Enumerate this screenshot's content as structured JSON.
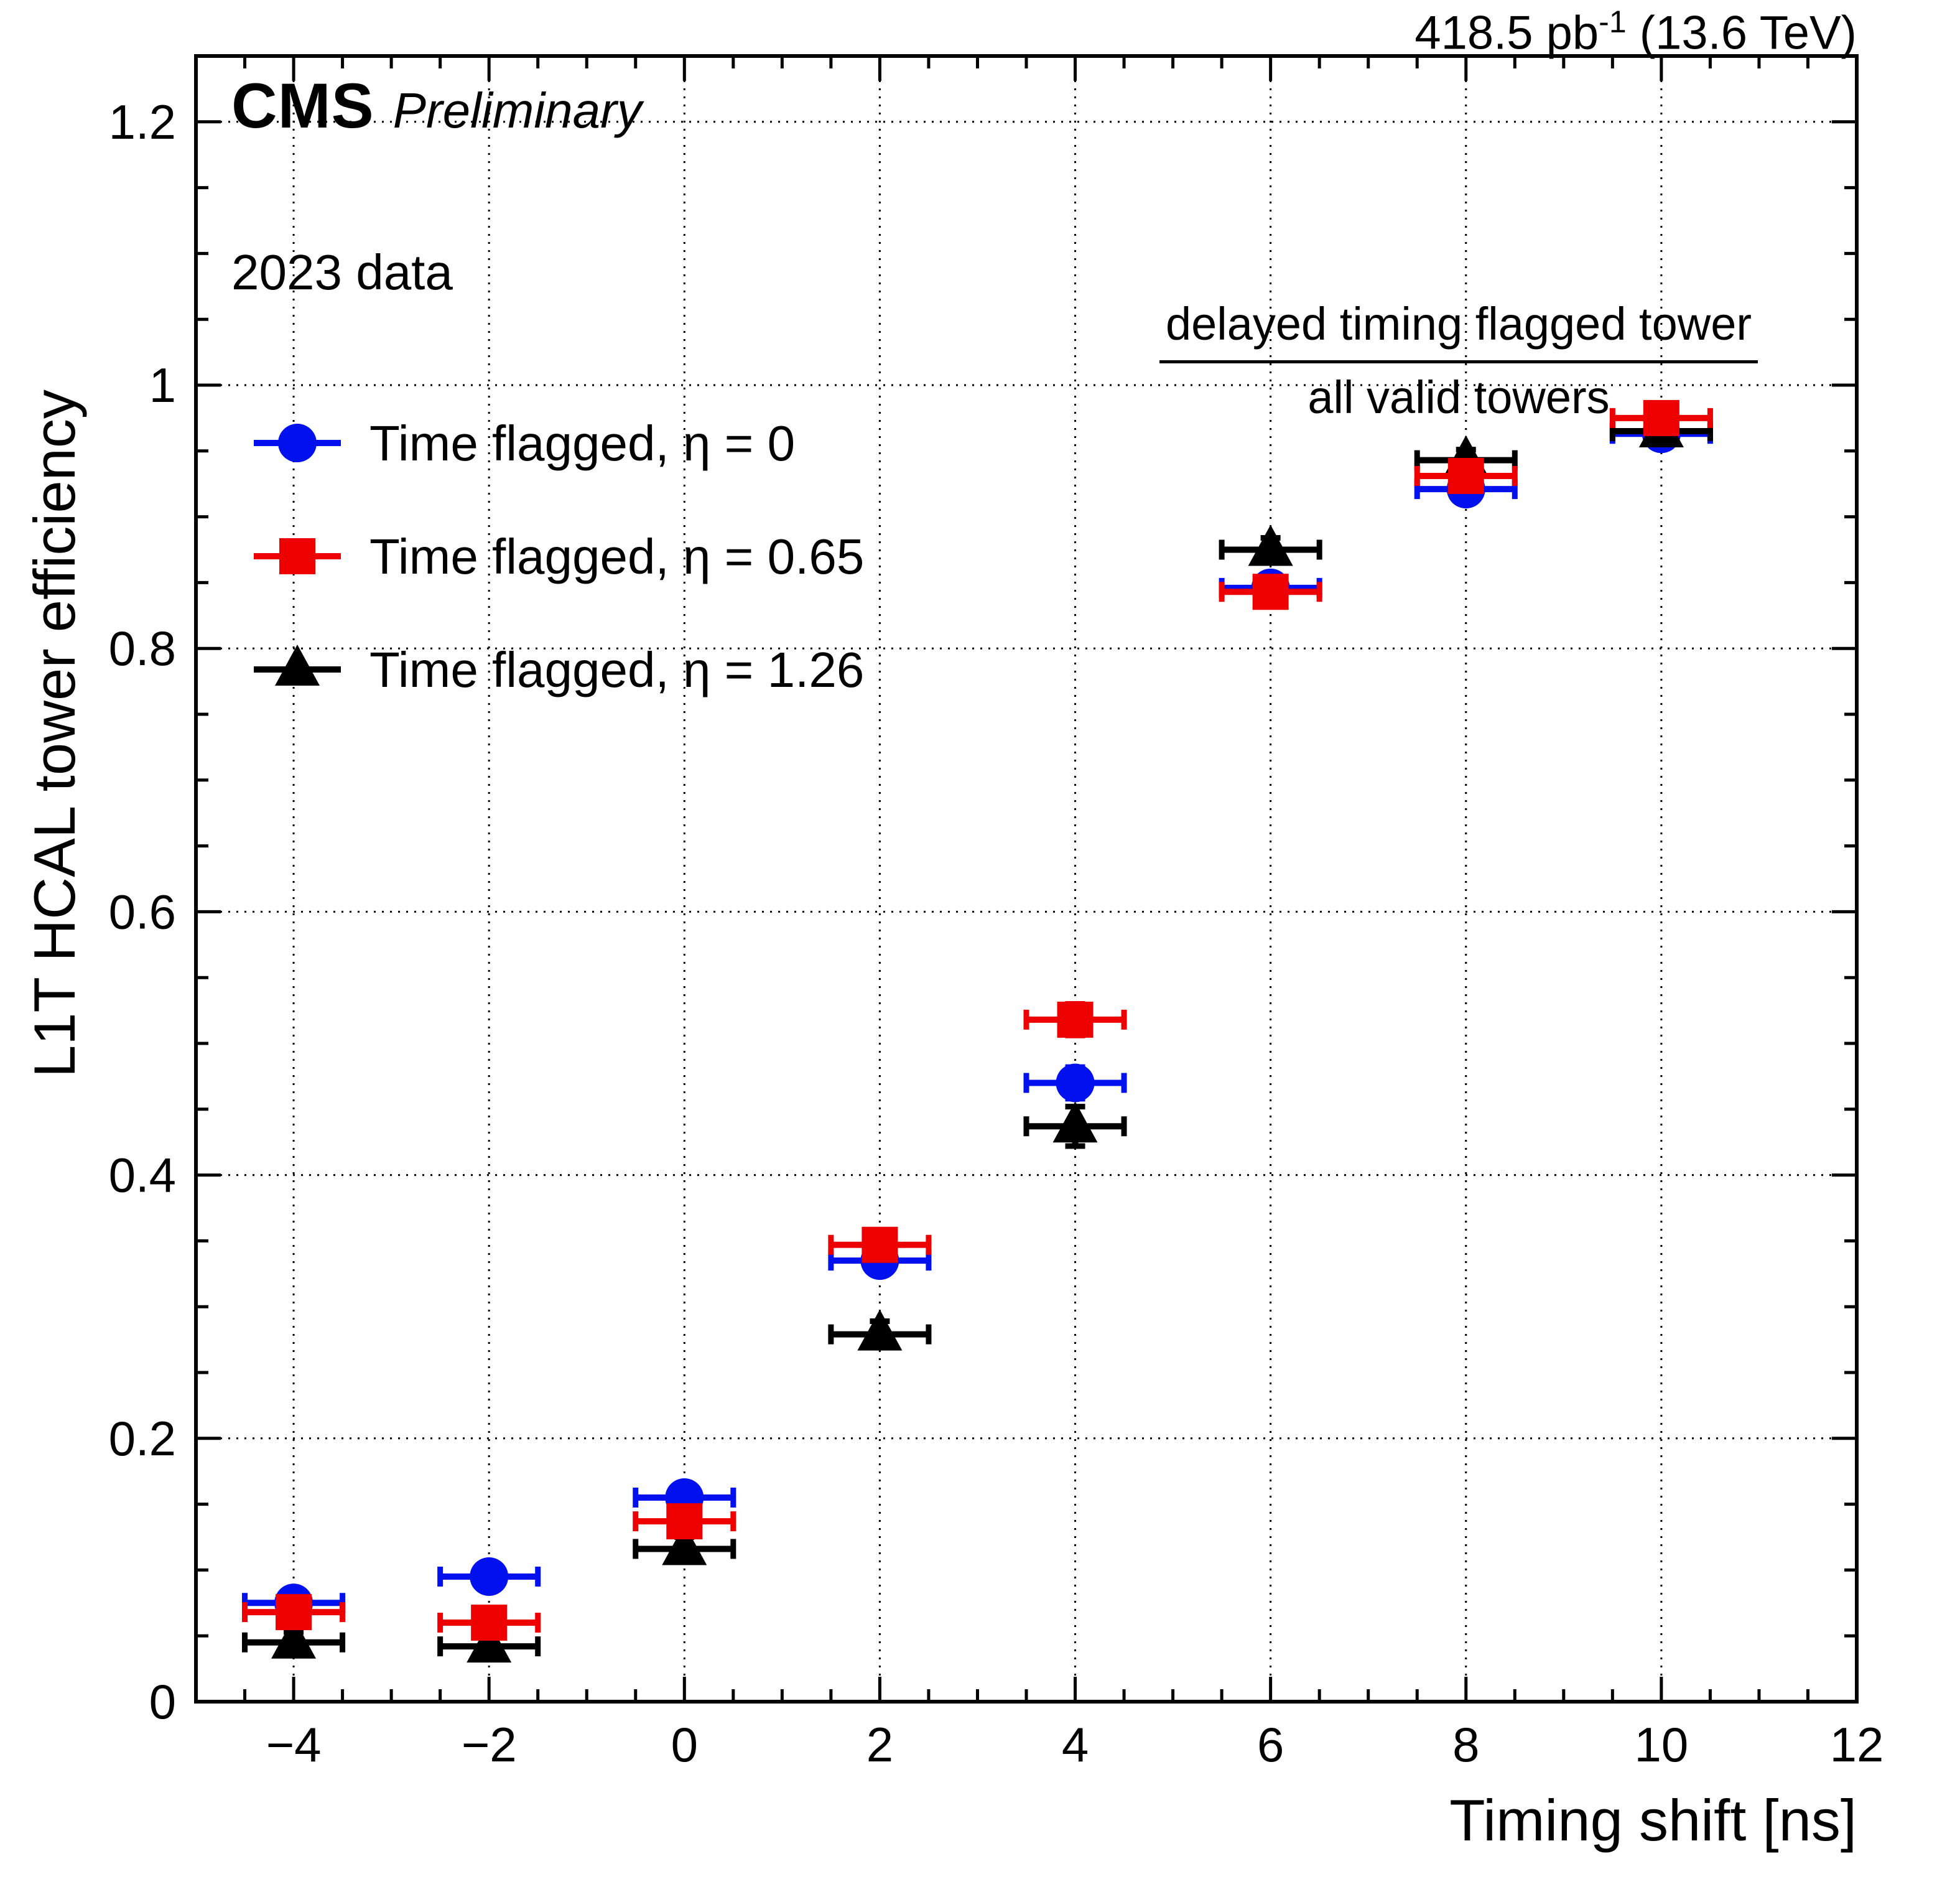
{
  "header": {
    "lumi_prefix": "418.5 pb",
    "lumi_sup": "-1",
    "lumi_suffix": " (13.6 TeV)"
  },
  "plot_labels": {
    "experiment": "CMS",
    "label": "Preliminary",
    "dataset": "2023 data",
    "ratio_numerator": "delayed timing flagged tower",
    "ratio_denominator": "all valid towers"
  },
  "chart_data": {
    "type": "scatter",
    "title": "",
    "xlabel": "Timing shift [ns]",
    "ylabel": "L1T HCAL tower efficiency",
    "xlim": [
      -5,
      12
    ],
    "ylim": [
      0,
      1.25
    ],
    "xticks": [
      -4,
      -2,
      0,
      2,
      4,
      6,
      8,
      10,
      12
    ],
    "xtick_labels": [
      "−4",
      "−2",
      "0",
      "2",
      "4",
      "6",
      "8",
      "10",
      "12"
    ],
    "yticks": [
      0,
      0.2,
      0.4,
      0.6,
      0.8,
      1.0,
      1.2
    ],
    "ytick_labels": [
      "0",
      "0.2",
      "0.4",
      "0.6",
      "0.8",
      "1",
      "1.2"
    ],
    "x_minor_step": 0.5,
    "y_minor_step": 0.05,
    "grid": true,
    "grid_style": "dotted",
    "legend_position": "top-left",
    "x": [
      -4,
      -2,
      0,
      2,
      4,
      6,
      8,
      10
    ],
    "xerr": 0.5,
    "draw_order": [
      0,
      2,
      1
    ],
    "series": [
      {
        "id": "eta-0",
        "name": "Time flagged, η = 0",
        "marker": "circle",
        "color": "#0010ee",
        "values": [
          0.075,
          0.095,
          0.155,
          0.335,
          0.47,
          0.846,
          0.921,
          0.963
        ],
        "yerr": [
          0.007,
          0.007,
          0.008,
          0.009,
          0.012,
          0.008,
          0.007,
          0.006
        ]
      },
      {
        "id": "eta-0p65",
        "name": "Time flagged, η = 0.65",
        "marker": "square",
        "color": "#ee0000",
        "values": [
          0.068,
          0.06,
          0.137,
          0.347,
          0.518,
          0.843,
          0.931,
          0.975
        ],
        "yerr": [
          0.007,
          0.007,
          0.008,
          0.009,
          0.012,
          0.008,
          0.007,
          0.006
        ]
      },
      {
        "id": "eta-1p26",
        "name": "Time flagged, η = 1.26",
        "marker": "triangle",
        "color": "#000000",
        "values": [
          0.045,
          0.042,
          0.116,
          0.279,
          0.437,
          0.875,
          0.943,
          0.965
        ],
        "yerr": [
          0.008,
          0.008,
          0.009,
          0.01,
          0.015,
          0.009,
          0.008,
          0.006
        ]
      }
    ]
  }
}
